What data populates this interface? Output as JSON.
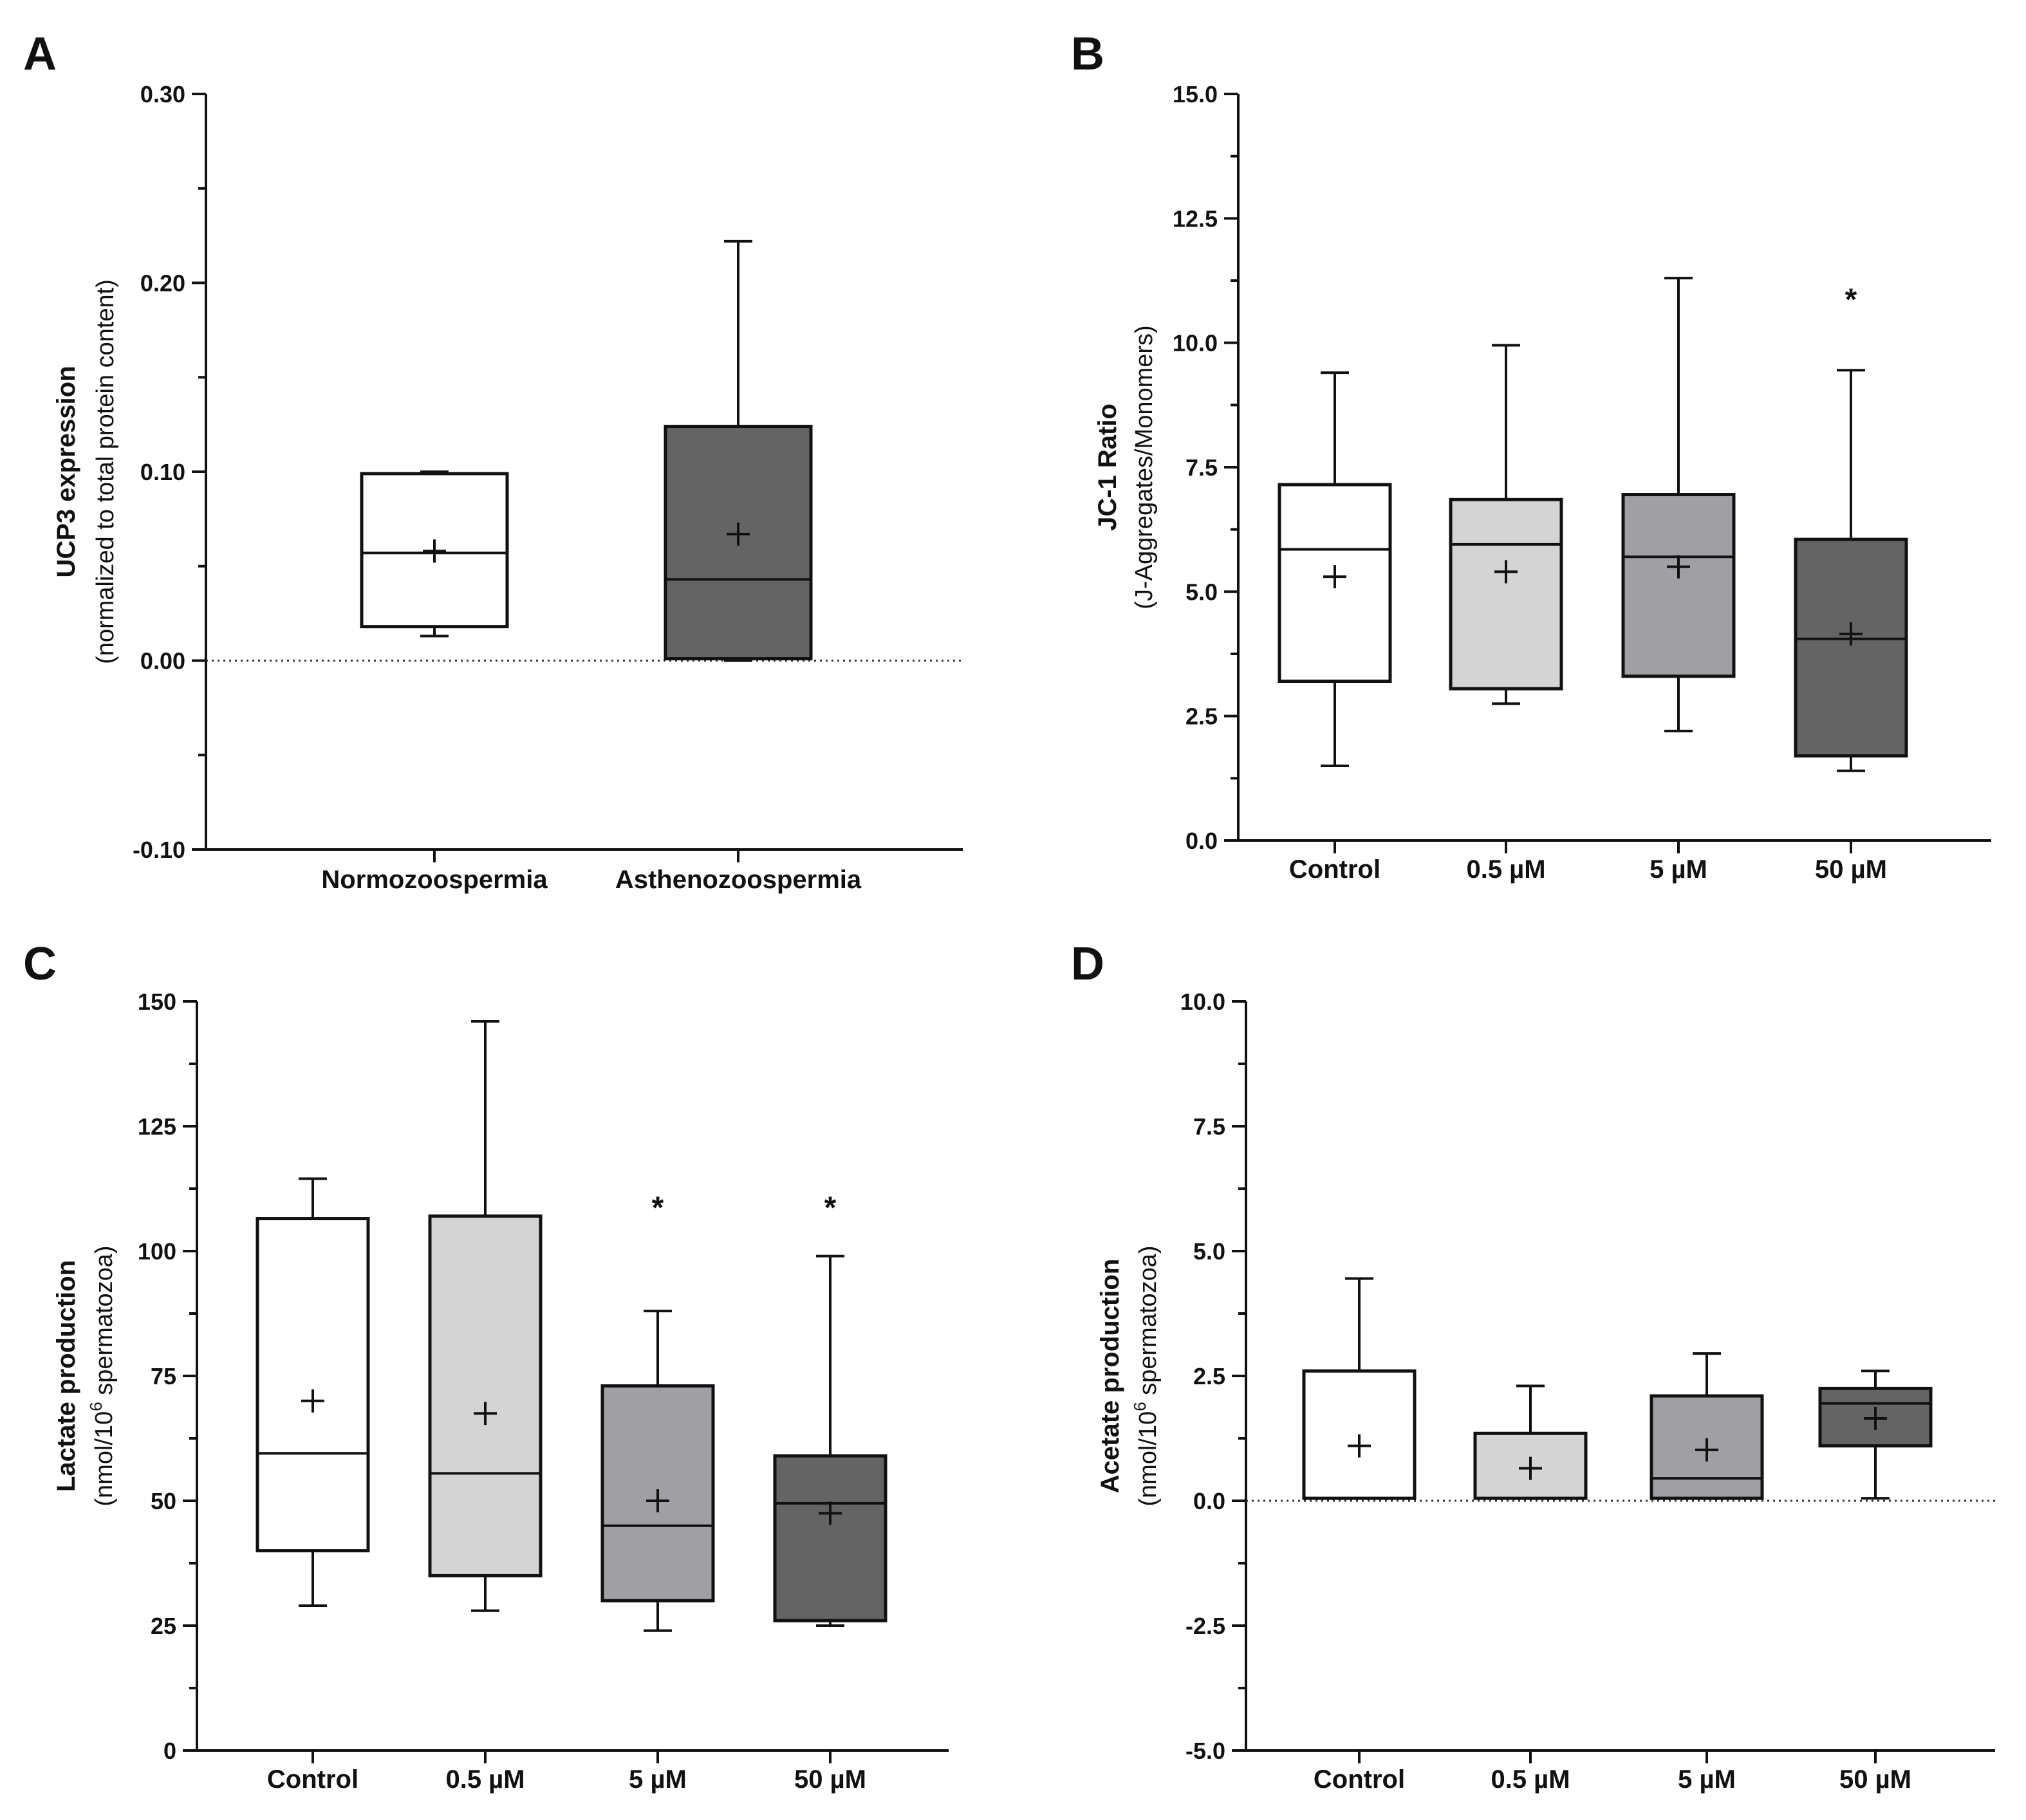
{
  "chart_data": [
    {
      "panel": "A",
      "type": "box",
      "ylabel": "UCP3 expression",
      "ylabel_sub": "(normalized to total protein content)",
      "ylim": [
        -0.1,
        0.3
      ],
      "yticks": [
        -0.1,
        0,
        0.1,
        0.2,
        0.3
      ],
      "yticklabels": [
        "-0.10",
        "0.00",
        "0.10",
        "0.20",
        "0.30"
      ],
      "ref_line": 0,
      "categories": [
        "Normozoospermia",
        "Asthenozoospermia"
      ],
      "boxes": [
        {
          "min": 0.013,
          "q1": 0.018,
          "median": 0.057,
          "q3": 0.099,
          "max": 0.1,
          "mean": 0.058,
          "fill": "#ffffff"
        },
        {
          "min": 0.0,
          "q1": 0.001,
          "median": 0.043,
          "q3": 0.124,
          "max": 0.222,
          "mean": 0.067,
          "fill": "#646464"
        }
      ],
      "annotations": []
    },
    {
      "panel": "B",
      "type": "box",
      "ylabel": "JC-1 Ratio",
      "ylabel_sub": "(J-Aggregates/Monomers)",
      "ylim": [
        0,
        15
      ],
      "yticks": [
        0,
        2.5,
        5,
        7.5,
        10,
        12.5,
        15
      ],
      "yticklabels": [
        "0.0",
        "2.5",
        "5.0",
        "7.5",
        "10.0",
        "12.5",
        "15.0"
      ],
      "categories": [
        "Control",
        "0.5 µM",
        "5 µM",
        "50 µM"
      ],
      "boxes": [
        {
          "min": 1.5,
          "q1": 3.2,
          "median": 5.85,
          "q3": 7.15,
          "max": 9.4,
          "mean": 5.3,
          "fill": "#ffffff"
        },
        {
          "min": 2.75,
          "q1": 3.05,
          "median": 5.95,
          "q3": 6.85,
          "max": 9.95,
          "mean": 5.4,
          "fill": "#d4d4d4"
        },
        {
          "min": 2.2,
          "q1": 3.3,
          "median": 5.7,
          "q3": 6.95,
          "max": 11.3,
          "mean": 5.5,
          "fill": "#a0a0a4"
        },
        {
          "min": 1.4,
          "q1": 1.7,
          "median": 4.05,
          "q3": 6.05,
          "max": 9.45,
          "mean": 4.15,
          "fill": "#646464"
        }
      ],
      "annotations": [
        {
          "category_index": 3,
          "text": "*",
          "y": 11.1
        }
      ]
    },
    {
      "panel": "C",
      "type": "box",
      "ylabel": "Lactate production",
      "ylabel_sub": "(nmol/10^6 spermatozoa)",
      "ylim": [
        0,
        150
      ],
      "yticks": [
        0,
        25,
        50,
        75,
        100,
        125,
        150
      ],
      "yticklabels": [
        "0",
        "25",
        "50",
        "75",
        "100",
        "125",
        "150"
      ],
      "categories": [
        "Control",
        "0.5 µM",
        "5 µM",
        "50 µM"
      ],
      "boxes": [
        {
          "min": 29,
          "q1": 40,
          "median": 59.5,
          "q3": 106.5,
          "max": 114.5,
          "mean": 70,
          "fill": "#ffffff"
        },
        {
          "min": 28,
          "q1": 35,
          "median": 55.5,
          "q3": 107,
          "max": 146,
          "mean": 67.5,
          "fill": "#d4d4d4"
        },
        {
          "min": 24,
          "q1": 30,
          "median": 45,
          "q3": 73,
          "max": 88,
          "mean": 50,
          "fill": "#a0a0a4"
        },
        {
          "min": 25,
          "q1": 26,
          "median": 49.5,
          "q3": 59,
          "max": 99,
          "mean": 47.5,
          "fill": "#646464"
        }
      ],
      "annotations": [
        {
          "category_index": 2,
          "text": "*",
          "y": 111
        },
        {
          "category_index": 3,
          "text": "*",
          "y": 111
        }
      ]
    },
    {
      "panel": "D",
      "type": "box",
      "ylabel": "Acetate production",
      "ylabel_sub": "(nmol/10^6 spermatozoa)",
      "ylim": [
        -5,
        10
      ],
      "yticks": [
        -5,
        -2.5,
        0,
        2.5,
        5,
        7.5,
        10
      ],
      "yticklabels": [
        "-5.0",
        "-2.5",
        "0.0",
        "2.5",
        "5.0",
        "7.5",
        "10.0"
      ],
      "ref_line": 0,
      "categories": [
        "Control",
        "0.5 µM",
        "5 µM",
        "50 µM"
      ],
      "boxes": [
        {
          "min": 0.05,
          "q1": 0.05,
          "median": 0.05,
          "q3": 2.6,
          "max": 4.45,
          "mean": 1.1,
          "fill": "#ffffff"
        },
        {
          "min": 0.05,
          "q1": 0.05,
          "median": 0.05,
          "q3": 1.35,
          "max": 2.3,
          "mean": 0.65,
          "fill": "#d4d4d4"
        },
        {
          "min": 0.05,
          "q1": 0.05,
          "median": 0.45,
          "q3": 2.1,
          "max": 2.95,
          "mean": 1.02,
          "fill": "#a0a0a4"
        },
        {
          "min": 0.05,
          "q1": 1.1,
          "median": 1.95,
          "q3": 2.25,
          "max": 2.6,
          "mean": 1.65,
          "fill": "#646464"
        }
      ],
      "annotations": []
    }
  ]
}
